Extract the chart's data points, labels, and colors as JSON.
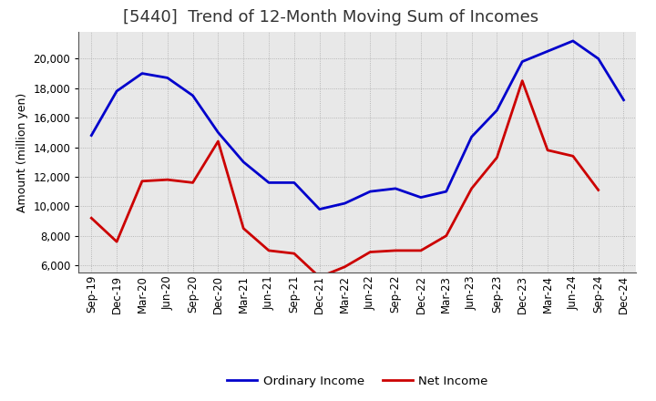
{
  "title": "[5440]  Trend of 12-Month Moving Sum of Incomes",
  "ylabel": "Amount (million yen)",
  "x_labels": [
    "Sep-19",
    "Dec-19",
    "Mar-20",
    "Jun-20",
    "Sep-20",
    "Dec-20",
    "Mar-21",
    "Jun-21",
    "Sep-21",
    "Dec-21",
    "Mar-22",
    "Jun-22",
    "Sep-22",
    "Dec-22",
    "Mar-23",
    "Jun-23",
    "Sep-23",
    "Dec-23",
    "Mar-24",
    "Jun-24",
    "Sep-24",
    "Dec-24"
  ],
  "ordinary_income": [
    14800,
    17800,
    19000,
    18700,
    17500,
    15000,
    13000,
    11600,
    11600,
    9800,
    10200,
    11000,
    11200,
    10600,
    11000,
    14700,
    16500,
    19800,
    20500,
    21200,
    20000,
    17200
  ],
  "net_income": [
    9200,
    7600,
    11700,
    11800,
    11600,
    14400,
    8500,
    7000,
    6800,
    5200,
    5900,
    6900,
    7000,
    7000,
    8000,
    11200,
    13300,
    18500,
    13800,
    13400,
    11100,
    null
  ],
  "ordinary_color": "#0000cc",
  "net_color": "#cc0000",
  "background_color": "#ffffff",
  "plot_bg_color": "#e8e8e8",
  "grid_color": "#999999",
  "ylim_min": 5500,
  "ylim_max": 21800,
  "yticks": [
    6000,
    8000,
    10000,
    12000,
    14000,
    16000,
    18000,
    20000
  ],
  "legend_labels": [
    "Ordinary Income",
    "Net Income"
  ],
  "title_fontsize": 13,
  "axis_fontsize": 9,
  "tick_fontsize": 8.5,
  "line_width": 2.0
}
